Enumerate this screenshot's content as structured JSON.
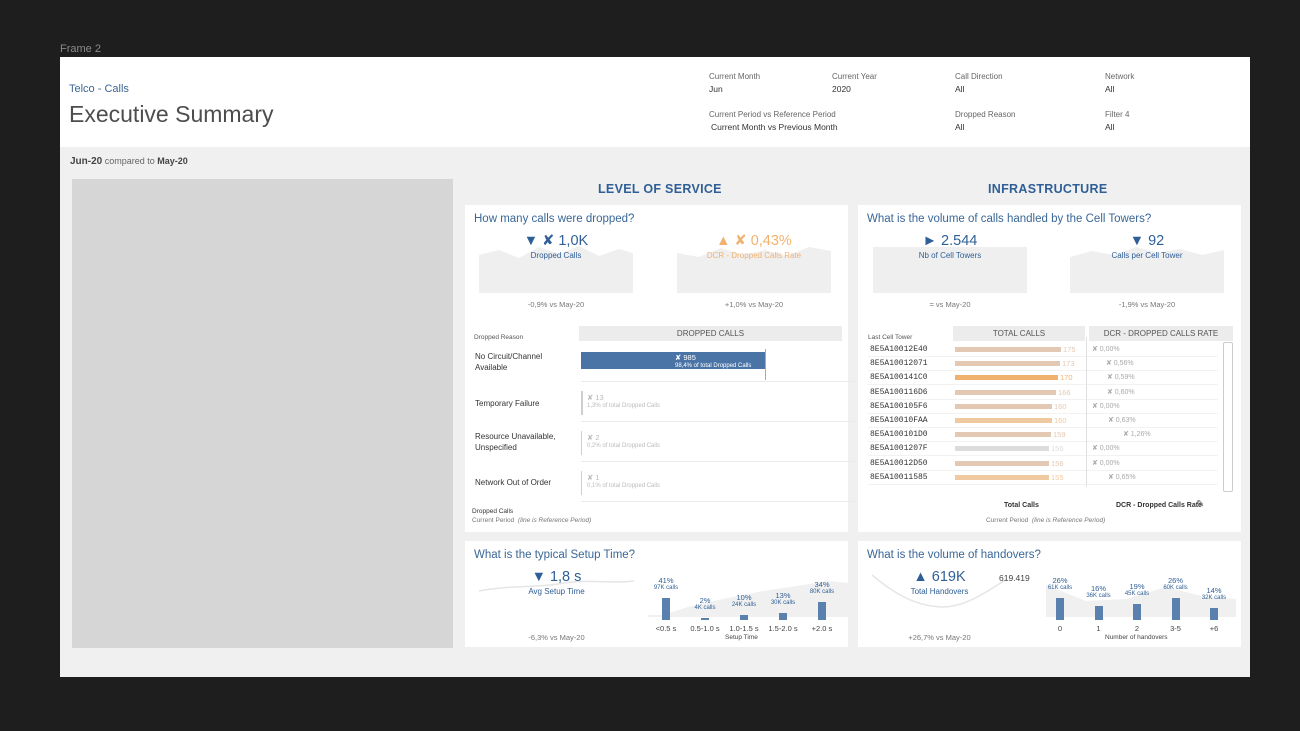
{
  "frame_label": "Frame 2",
  "header": {
    "subtitle": "Telco - Calls",
    "title": "Executive Summary"
  },
  "filters": [
    {
      "label": "Current Month",
      "value": "Jun"
    },
    {
      "label": "Current Year",
      "value": "2020"
    },
    {
      "label": "Call Direction",
      "value": "All"
    },
    {
      "label": "Network",
      "value": "All"
    },
    {
      "label": "Current Period vs Reference Period",
      "value": "Current Month vs Previous Month"
    },
    {
      "label": "Dropped Reason",
      "value": "All"
    },
    {
      "label": "Filter 4",
      "value": "All"
    }
  ],
  "period": {
    "current": "Jun-20",
    "middle": "compared to",
    "reference": "May-20"
  },
  "sections": {
    "left": "LEVEL OF SERVICE",
    "right": "INFRASTRUCTURE"
  },
  "dropped_panel": {
    "question": "How many calls were dropped?",
    "kpi1": {
      "value": "▼ ✘ 1,0K",
      "label": "Dropped Calls",
      "delta": "-0,9% vs May-20"
    },
    "kpi2": {
      "value": "▲ ✘ 0,43%",
      "label": "DCR - Dropped Calls Rate",
      "delta": "+1,0% vs May-20"
    },
    "col_reason": "Dropped Reason",
    "col_calls": "DROPPED CALLS",
    "reasons": [
      {
        "name": "No Circuit/Channel Available",
        "value": "✘ 985",
        "share": "98,4% of total Dropped Calls",
        "fraction": 0.984
      },
      {
        "name": "Temporary Failure",
        "value": "✘ 13",
        "share": "1,3% of total Dropped Calls",
        "fraction": 0.013
      },
      {
        "name": "Resource Unavailable, Unspecified",
        "value": "✘ 2",
        "share": "0,2% of total Dropped Calls",
        "fraction": 0.002
      },
      {
        "name": "Network Out of Order",
        "value": "✘ 1",
        "share": "0,1% of total Dropped Calls",
        "fraction": 0.001
      }
    ],
    "footnote_title": "Dropped Calls",
    "footnote_a": "Current Period",
    "footnote_b": "(line is Reference Period)"
  },
  "towers_panel": {
    "question": "What is the volume of calls handled by the Cell Towers?",
    "kpi1": {
      "value": "► 2.544",
      "label": "Nb of Cell Towers",
      "delta": "= vs May-20"
    },
    "kpi2": {
      "value": "▼ 92",
      "label": "Calls per Cell Tower",
      "delta": "-1,9% vs May-20"
    },
    "col_tower": "Last Cell Tower",
    "col_total": "TOTAL CALLS",
    "col_dcr": "DCR - DROPPED CALLS RATE",
    "rows": [
      {
        "id": "8E5A10012E40",
        "calls": 175,
        "calls_label": "175",
        "dcr": "✘ 0,00%",
        "color": "#e3c8b3"
      },
      {
        "id": "8E5A10012071",
        "calls": 173,
        "calls_label": "173",
        "dcr": "✘ 0,56%",
        "color": "#e3c8b3"
      },
      {
        "id": "8E5A100141C0",
        "calls": 170,
        "calls_label": "170",
        "dcr": "✘ 0,59%",
        "color": "#f1b26f"
      },
      {
        "id": "8E5A100116D6",
        "calls": 166,
        "calls_label": "166",
        "dcr": "✘ 0,60%",
        "color": "#e3c8b3"
      },
      {
        "id": "8E5A100105F6",
        "calls": 160,
        "calls_label": "160",
        "dcr": "✘ 0,00%",
        "color": "#e3c8b3"
      },
      {
        "id": "8E5A10010FAA",
        "calls": 160,
        "calls_label": "160",
        "dcr": "✘ 0,63%",
        "color": "#f1c9a0"
      },
      {
        "id": "8E5A100101D0",
        "calls": 159,
        "calls_label": "159",
        "dcr": "✘ 1,26%",
        "color": "#e3c8b3"
      },
      {
        "id": "8E5A1001207F",
        "calls": 156,
        "calls_label": "156",
        "dcr": "✘ 0,00%",
        "color": "#dcdcdc"
      },
      {
        "id": "8E5A10012D50",
        "calls": 156,
        "calls_label": "156",
        "dcr": "✘ 0,00%",
        "color": "#e3c8b3"
      },
      {
        "id": "8E5A10011585",
        "calls": 155,
        "calls_label": "155",
        "dcr": "✘ 0,65%",
        "color": "#f1c9a0"
      }
    ],
    "legend_total": "Total Calls",
    "legend_dcr": "DCR - Dropped Calls Rate",
    "footnote_a": "Current Period",
    "footnote_b": "(line is Reference Period)"
  },
  "setup_panel": {
    "question": "What is the typical Setup Time?",
    "kpi": {
      "value": "▼ 1,8 s",
      "label": "Avg Setup Time",
      "delta": "-6,3% vs May-20"
    },
    "axis_title": "Setup Time",
    "bins": [
      {
        "label": "<0.5 s",
        "pct": "41%",
        "pct_value": 41,
        "calls": "97K calls"
      },
      {
        "label": "0.5-1.0 s",
        "pct": "2%",
        "pct_value": 2,
        "calls": "4K calls"
      },
      {
        "label": "1.0-1.5 s",
        "pct": "10%",
        "pct_value": 10,
        "calls": "24K calls"
      },
      {
        "label": "1.5-2.0 s",
        "pct": "13%",
        "pct_value": 13,
        "calls": "30K calls"
      },
      {
        "label": "+2.0 s",
        "pct": "34%",
        "pct_value": 34,
        "calls": "80K calls"
      }
    ]
  },
  "handover_panel": {
    "question": "What is the volume of handovers?",
    "kpi": {
      "value": "▲ 619K",
      "label": "Total Handovers",
      "delta": "+26,7% vs May-20"
    },
    "ref_value": "619.419",
    "axis_title": "Number of handovers",
    "bins": [
      {
        "label": "0",
        "pct": "26%",
        "pct_value": 26,
        "calls": "61K calls"
      },
      {
        "label": "1",
        "pct": "16%",
        "pct_value": 16,
        "calls": "36K calls"
      },
      {
        "label": "2",
        "pct": "19%",
        "pct_value": 19,
        "calls": "45K calls"
      },
      {
        "label": "3-5",
        "pct": "26%",
        "pct_value": 26,
        "calls": "60K calls"
      },
      {
        "label": "+6",
        "pct": "14%",
        "pct_value": 14,
        "calls": "32K calls"
      }
    ]
  },
  "colors": {
    "blue": "#2f5f96",
    "orange": "#f1b26f",
    "bar_blue": "#4a74a6"
  }
}
